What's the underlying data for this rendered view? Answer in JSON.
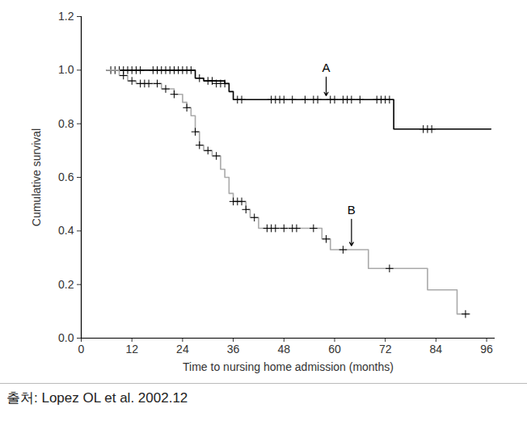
{
  "chart_data": {
    "type": "line",
    "xlabel": "Time to nursing home admission (months)",
    "ylabel": "Cumulative survival",
    "source": "출처: Lopez OL et al. 2002.12",
    "xlim": [
      0,
      98
    ],
    "xticks": [
      0,
      12,
      24,
      36,
      48,
      60,
      72,
      84,
      96
    ],
    "ylim": [
      0,
      1.2
    ],
    "yticks": [
      {
        "value": 0,
        "label": "0.0"
      },
      0.2,
      0.4,
      0.6,
      0.8,
      {
        "value": 1,
        "label": "1.0"
      },
      1.2
    ],
    "grid": false,
    "line_style": "step",
    "series": [
      {
        "name": "A",
        "color": "#000000",
        "marker": "plus",
        "x": [
          6,
          27,
          29,
          34,
          35,
          36,
          74,
          97
        ],
        "values": [
          1.0,
          0.97,
          0.96,
          0.95,
          0.92,
          0.89,
          0.78,
          0.78
        ],
        "censor_x": [
          7,
          8,
          9,
          10,
          11,
          12,
          13,
          14,
          17,
          18,
          19,
          20,
          21,
          22,
          23,
          24,
          25,
          26,
          28,
          30,
          31,
          32,
          33,
          34,
          37,
          38,
          45,
          46,
          47,
          48,
          50,
          53,
          55,
          56,
          59,
          60,
          62,
          63,
          64,
          66,
          70,
          71,
          72,
          73,
          81,
          82,
          83
        ],
        "censor_values": [
          1.0,
          1.0,
          1.0,
          1.0,
          1.0,
          1.0,
          1.0,
          1.0,
          1.0,
          1.0,
          1.0,
          1.0,
          1.0,
          1.0,
          1.0,
          1.0,
          1.0,
          1.0,
          0.97,
          0.96,
          0.96,
          0.95,
          0.95,
          0.95,
          0.89,
          0.89,
          0.89,
          0.89,
          0.89,
          0.89,
          0.89,
          0.89,
          0.89,
          0.89,
          0.89,
          0.89,
          0.89,
          0.89,
          0.89,
          0.89,
          0.89,
          0.89,
          0.89,
          0.89,
          0.78,
          0.78,
          0.78
        ]
      },
      {
        "name": "B",
        "color": "#aaaaaa",
        "marker": "plus",
        "x": [
          6,
          9,
          11,
          13,
          19,
          22,
          24,
          25,
          26,
          27,
          28,
          29,
          31,
          33,
          34,
          35,
          36,
          39,
          40,
          42,
          57,
          59,
          68,
          82,
          89,
          92
        ],
        "values": [
          1.0,
          0.98,
          0.96,
          0.95,
          0.93,
          0.91,
          0.88,
          0.86,
          0.83,
          0.77,
          0.72,
          0.7,
          0.68,
          0.63,
          0.6,
          0.54,
          0.51,
          0.48,
          0.45,
          0.41,
          0.37,
          0.33,
          0.26,
          0.18,
          0.09,
          0.09
        ],
        "censor_x": [
          10,
          12,
          14,
          15,
          16,
          18,
          20,
          22,
          25,
          27,
          28,
          30,
          32,
          36,
          37,
          38,
          39,
          41,
          44,
          45,
          46,
          48,
          50,
          51,
          55,
          58,
          62,
          73,
          91
        ],
        "censor_values": [
          0.98,
          0.96,
          0.95,
          0.95,
          0.95,
          0.95,
          0.93,
          0.91,
          0.86,
          0.77,
          0.72,
          0.7,
          0.68,
          0.51,
          0.51,
          0.51,
          0.48,
          0.45,
          0.41,
          0.41,
          0.41,
          0.41,
          0.41,
          0.41,
          0.41,
          0.37,
          0.33,
          0.26,
          0.09
        ]
      }
    ],
    "annotations": [
      {
        "text": "A",
        "x": 58,
        "y": 0.98,
        "arrow_to": 0.905
      },
      {
        "text": "B",
        "x": 64,
        "y": 0.45,
        "arrow_to": 0.345
      }
    ]
  }
}
